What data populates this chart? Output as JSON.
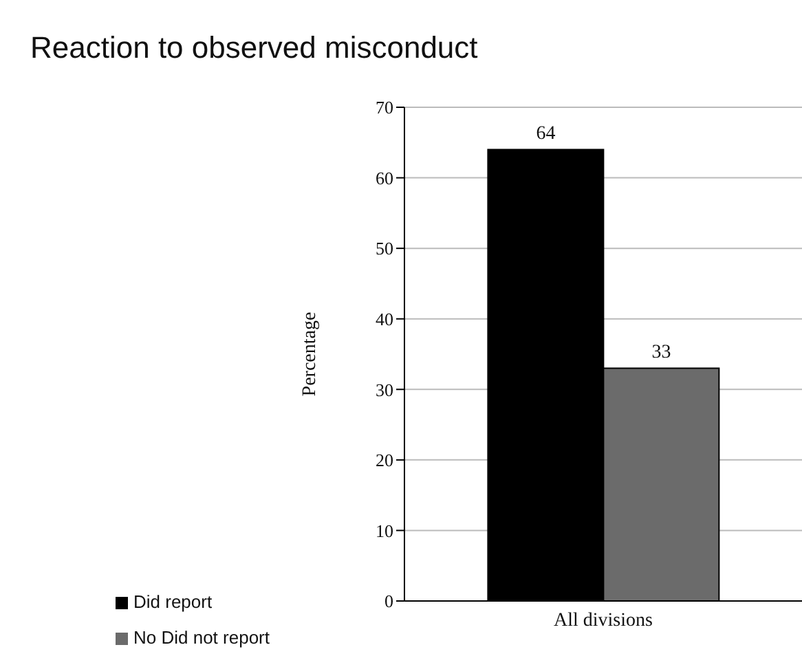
{
  "chart_data": {
    "type": "bar",
    "title": "Reaction to observed misconduct",
    "ylabel": "Percentage",
    "categories": [
      "All divisions"
    ],
    "series": [
      {
        "name": "Did report",
        "color": "#000000",
        "values": [
          64
        ]
      },
      {
        "name": "No Did not report",
        "color": "#6b6b6b",
        "values": [
          33
        ]
      }
    ],
    "ylim": [
      0,
      70
    ],
    "yticks": [
      0,
      10,
      20,
      30,
      40,
      50,
      60,
      70
    ],
    "grid": "y",
    "legend": "bottom left",
    "data_labels": true
  }
}
